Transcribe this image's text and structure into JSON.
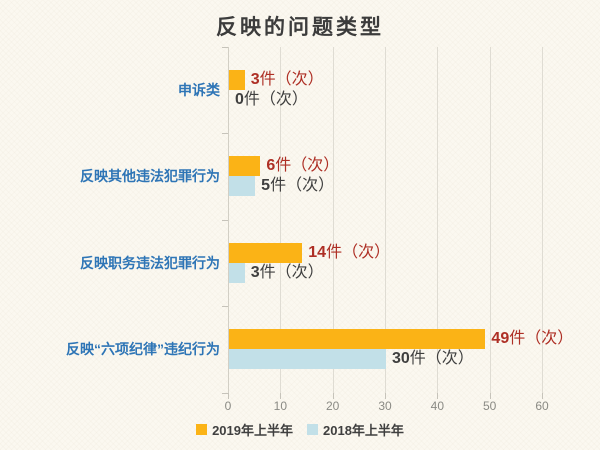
{
  "title": "反映的问题类型",
  "unit_suffix": "件（次）",
  "colors": {
    "background": "#fbf8f0",
    "series_2019": "#fbb316",
    "series_2018": "#c2e0e8",
    "value_label_2019": "#ae2f25",
    "value_label_2018": "#3f3f3f",
    "category_label": "#2e75b6",
    "gridline": "#dfdcd3",
    "tick_label": "#8a8a84",
    "title_text": "#3c3c3c"
  },
  "chart_data": {
    "type": "bar",
    "orientation": "horizontal",
    "title": "反映的问题类型",
    "categories": [
      "申诉类",
      "反映其他违法犯罪行为",
      "反映职务违法犯罪行为",
      "反映“六项纪律”违纪行为"
    ],
    "series": [
      {
        "name": "2019年上半年",
        "color": "#fbb316",
        "label_color": "#ae2f25",
        "values": [
          3,
          6,
          14,
          49
        ],
        "value_labels": [
          "3件（次）",
          "6件（次）",
          "14件（次）",
          "49件（次）"
        ]
      },
      {
        "name": "2018年上半年",
        "color": "#c2e0e8",
        "label_color": "#3f3f3f",
        "values": [
          0,
          5,
          3,
          30
        ],
        "value_labels": [
          "0件（次）",
          "5件（次）",
          "3件（次）",
          "30件（次）"
        ]
      }
    ],
    "xlim": [
      0,
      60
    ],
    "xticks": [
      0,
      10,
      20,
      30,
      40,
      50,
      60
    ],
    "grid": true,
    "legend_position": "bottom"
  },
  "legend": {
    "items": [
      {
        "label": "2019年上半年",
        "color": "#fbb316"
      },
      {
        "label": "2018年上半年",
        "color": "#c2e0e8"
      }
    ]
  }
}
